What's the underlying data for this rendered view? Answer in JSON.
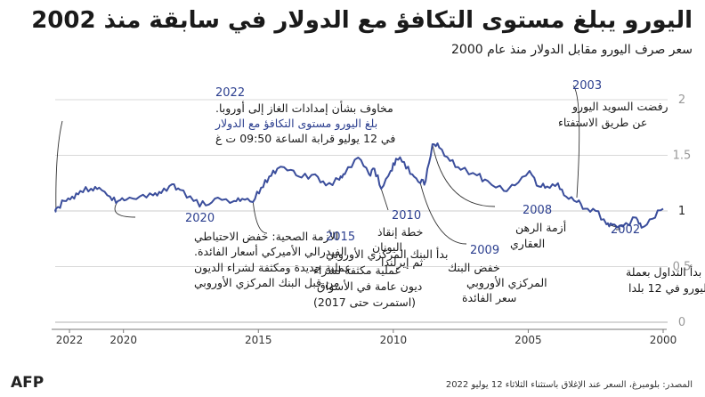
{
  "title": "اليورو يبلغ مستوى التكافؤ مع الدولار في سابقة منذ 2002",
  "subtitle": "سعر صرف اليورو مقابل الدولار منذ عام 2000",
  "source": "المصدر: بلومبرغ، السعر عند الإغلاق باستثناء الثلاثاء 12 يوليو 2022",
  "logo": "AFP",
  "colors": {
    "line": "#3b4e9c",
    "grid": "#cccccc",
    "year_label": "#2c3f8f"
  },
  "annotations": {
    "y2022": {
      "year": "2022",
      "l1": "مخاوف بشأن إمدادات الغاز إلى أوروبا.",
      "l2": "بلغ اليورو مستوى التكافؤ مع الدولار",
      "l3": "في 12 يوليو قرابة الساعة 09:50 ت غ"
    },
    "y2020": {
      "year": "2020",
      "l1": "الأزمة الصحية: خفض الاحتياطي",
      "l2": "الفيدرالي الأميركي أسعار الفائدة.",
      "l3": "عملية جديدة ومكثفة لشراء الديون",
      "l4": "من قبل البنك المركزي الأوروبي"
    },
    "y2015": {
      "year": "2015",
      "l1": "بدأ البنك المركزي الأوروبي",
      "l2": "عملية مكثفة لشراء",
      "l3": "ديون عامة في الأسواق",
      "l4": "(استمرت حتى 2017)"
    },
    "y2010": {
      "year": "2010",
      "l1": "خطة إنقاذ",
      "l2": "اليونان",
      "l3": "ثم إيرلندا"
    },
    "y2009": {
      "year": "2009",
      "l1": "خفض البنك",
      "l2": "المركزي الأوروبي",
      "l3": "سعر الفائدة"
    },
    "y2008": {
      "year": "2008",
      "l1": "أزمة الرهن",
      "l2": "العقاري"
    },
    "y2003": {
      "year": "2003",
      "l1": "رفضت السويد اليورو",
      "l2": "عن طريق الاستفتاء"
    },
    "y2002": {
      "year": "2002",
      "l1": "بدأ التداول بعملة",
      "l2": "اليورو في 12 بلدا"
    }
  },
  "chart_data": {
    "type": "line",
    "title": "اليورو يبلغ مستوى التكافؤ مع الدولار في سابقة منذ 2002",
    "subtitle": "سعر صرف اليورو مقابل الدولار منذ عام 2000",
    "x_axis": {
      "reversed": true,
      "range": [
        "2000-01-01",
        "2022-07-12"
      ],
      "ticks": [
        "2000",
        "2005",
        "2010",
        "2015",
        "2020",
        "2022"
      ]
    },
    "y_axis": {
      "position": "right",
      "range": [
        0,
        2
      ],
      "ticks": [
        "0",
        "0.5",
        "1",
        "1.5",
        "2"
      ]
    },
    "grid": "horizontal",
    "series": [
      {
        "x": [
          2000.0,
          2000.4,
          2000.8,
          2001.0,
          2001.5,
          2001.9,
          2002.1,
          2002.5,
          2002.9,
          2003.2,
          2003.6,
          2003.9,
          2004.3,
          2004.6,
          2004.95,
          2005.5,
          2005.9,
          2006.5,
          2006.9,
          2007.5,
          2007.9,
          2008.3,
          2008.55,
          2008.8,
          2009.0,
          2009.3,
          2009.6,
          2009.9,
          2010.1,
          2010.45,
          2010.7,
          2010.9,
          2011.3,
          2011.8,
          2012.0,
          2012.5,
          2012.9,
          2013.4,
          2013.8,
          2014.3,
          2014.6,
          2014.9,
          2015.2,
          2015.6,
          2015.9,
          2016.5,
          2016.95,
          2017.4,
          2017.9,
          2018.2,
          2018.6,
          2018.9,
          2019.4,
          2019.9,
          2020.2,
          2020.5,
          2020.9,
          2021.2,
          2021.6,
          2021.9,
          2022.2,
          2022.5,
          2022.53
        ],
        "y": [
          1.02,
          0.93,
          0.85,
          0.94,
          0.86,
          0.88,
          0.88,
          1.0,
          1.02,
          1.08,
          1.13,
          1.25,
          1.22,
          1.22,
          1.36,
          1.23,
          1.18,
          1.27,
          1.32,
          1.37,
          1.45,
          1.57,
          1.6,
          1.27,
          1.25,
          1.33,
          1.44,
          1.47,
          1.36,
          1.2,
          1.38,
          1.33,
          1.48,
          1.33,
          1.28,
          1.23,
          1.33,
          1.3,
          1.37,
          1.38,
          1.31,
          1.21,
          1.08,
          1.11,
          1.09,
          1.12,
          1.05,
          1.09,
          1.19,
          1.24,
          1.16,
          1.14,
          1.13,
          1.1,
          1.09,
          1.13,
          1.21,
          1.2,
          1.18,
          1.13,
          1.09,
          1.02,
          1.0
        ]
      }
    ]
  }
}
